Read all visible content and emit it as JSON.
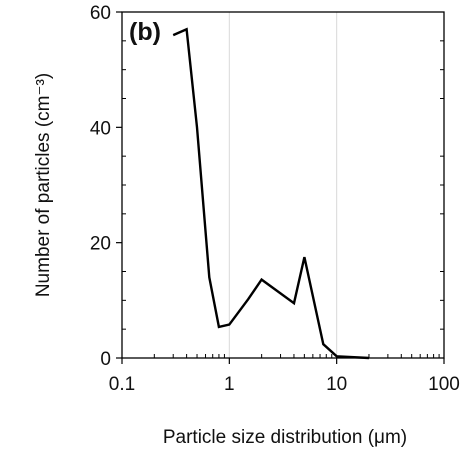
{
  "chart_data": {
    "type": "line",
    "panel_label": "(b)",
    "title": "",
    "xlabel": "Particle size distribution (μm)",
    "ylabel": "Number of particles (cm⁻³)",
    "x_scale": "log",
    "xlim": [
      0.1,
      100
    ],
    "ylim": [
      0,
      60
    ],
    "x_ticks": [
      0.1,
      1,
      10,
      100
    ],
    "x_tick_labels": [
      "0.1",
      "1",
      "10",
      "100"
    ],
    "y_ticks": [
      0,
      20,
      40,
      60
    ],
    "y_tick_labels": [
      "0",
      "20",
      "40",
      "60"
    ],
    "grid": "vertical major gridlines",
    "line_color": "#000000",
    "series": [
      {
        "x": [
          0.3,
          0.4,
          0.5,
          0.65,
          0.8,
          1.0,
          1.5,
          2.0,
          4.0,
          5.0,
          7.5,
          10,
          20
        ],
        "y": [
          56,
          57,
          40,
          14,
          5.4,
          5.8,
          10.2,
          13.6,
          9.5,
          17.5,
          2.4,
          0.3,
          0
        ]
      }
    ]
  }
}
